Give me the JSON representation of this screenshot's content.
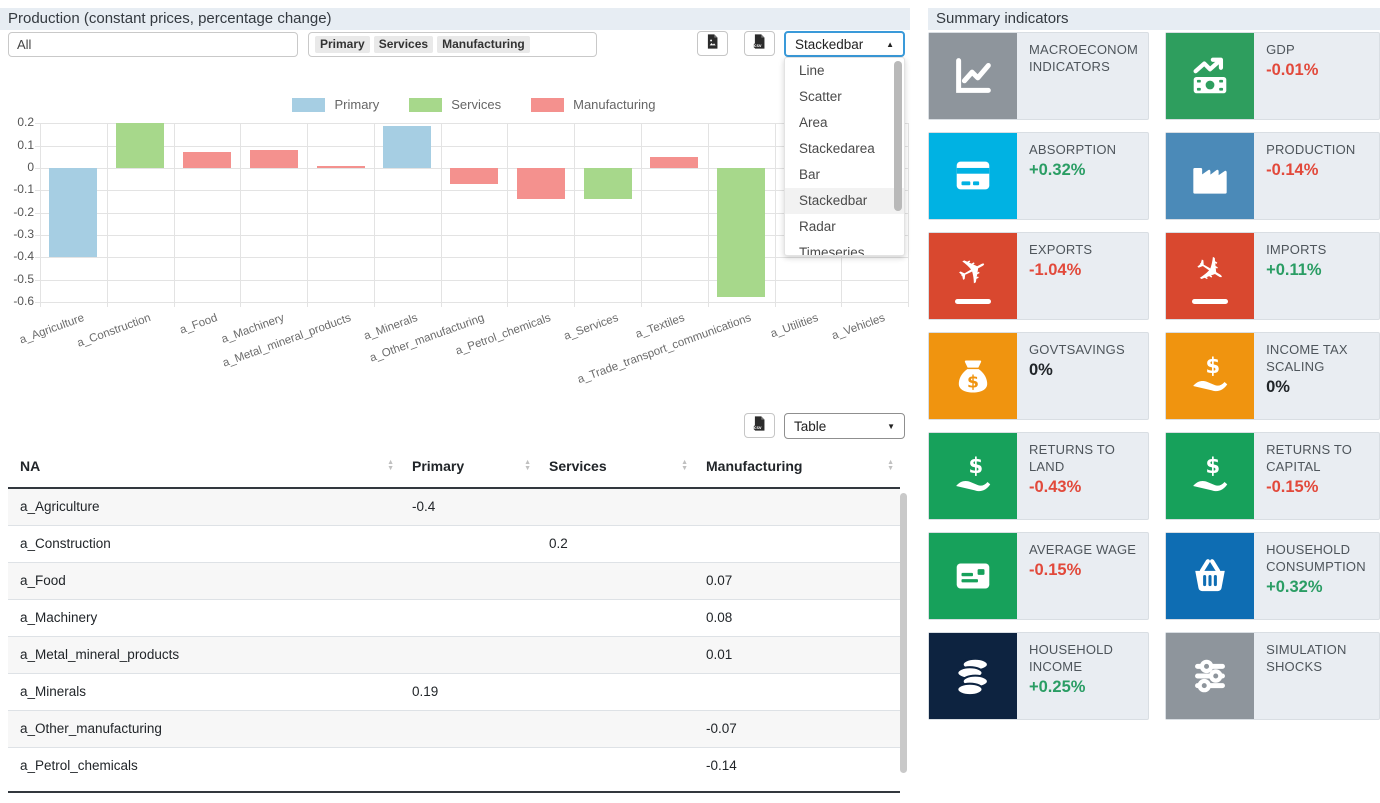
{
  "left_panel": {
    "title": "Production (constant prices, percentage change)",
    "sector_filter": {
      "value": "All"
    },
    "series_filter": {
      "tags": [
        "Primary",
        "Services",
        "Manufacturing"
      ]
    },
    "toolbar": {
      "export_image_icon": "file-image",
      "export_csv_icon": "file-csv",
      "chart_type": {
        "value": "Stackedbar",
        "open": true,
        "highlighted": "Stackedbar",
        "options": [
          "Line",
          "Scatter",
          "Area",
          "Stackedarea",
          "Bar",
          "Stackedbar",
          "Radar",
          "Timeseries"
        ]
      }
    },
    "table_toolbar": {
      "export_csv_icon": "file-csv",
      "view_select": {
        "value": "Table"
      }
    }
  },
  "chart_data": {
    "type": "bar",
    "title": "Production (constant prices, percentage change)",
    "categories": [
      "a_Agriculture",
      "a_Construction",
      "a_Food",
      "a_Machinery",
      "a_Metal_mineral_products",
      "a_Minerals",
      "a_Other_manufacturing",
      "a_Petrol_chemicals",
      "a_Services",
      "a_Textiles",
      "a_Trade_transport_communications",
      "a_Utilities",
      "a_Vehicles"
    ],
    "series": [
      {
        "name": "Primary",
        "color": "#a6cee3",
        "values": [
          -0.4,
          null,
          null,
          null,
          null,
          0.19,
          null,
          null,
          null,
          null,
          null,
          null,
          null
        ]
      },
      {
        "name": "Services",
        "color": "#a7d88b",
        "values": [
          null,
          0.2,
          null,
          null,
          null,
          null,
          null,
          null,
          -0.14,
          null,
          -0.58,
          null,
          null
        ]
      },
      {
        "name": "Manufacturing",
        "color": "#f4918e",
        "values": [
          null,
          null,
          0.07,
          0.08,
          0.01,
          null,
          -0.07,
          -0.14,
          null,
          0.05,
          null,
          null,
          null
        ]
      }
    ],
    "ylim": [
      -0.6,
      0.2
    ],
    "yticks": [
      0.2,
      0.1,
      0,
      -0.1,
      -0.2,
      -0.3,
      -0.4,
      -0.5,
      -0.6
    ],
    "grid": true,
    "legend_position": "top"
  },
  "table": {
    "columns": [
      "NA",
      "Primary",
      "Services",
      "Manufacturing"
    ],
    "rows": [
      [
        "a_Agriculture",
        "-0.4",
        "",
        ""
      ],
      [
        "a_Construction",
        "",
        "0.2",
        ""
      ],
      [
        "a_Food",
        "",
        "",
        "0.07"
      ],
      [
        "a_Machinery",
        "",
        "",
        "0.08"
      ],
      [
        "a_Metal_mineral_products",
        "",
        "",
        "0.01"
      ],
      [
        "a_Minerals",
        "0.19",
        "",
        ""
      ],
      [
        "a_Other_manufacturing",
        "",
        "",
        "-0.07"
      ],
      [
        "a_Petrol_chemicals",
        "",
        "",
        "-0.14"
      ]
    ]
  },
  "summary": {
    "title": "Summary indicators",
    "value_colors": {
      "negative": "#e2493b",
      "positive": "#2a9d64",
      "zero": "#212529"
    },
    "tiles": [
      {
        "label": "MACROECONOM INDICATORS",
        "value": "",
        "icon": "line-chart",
        "color": "#8e959c",
        "value_state": ""
      },
      {
        "label": "GDP",
        "value": "-0.01%",
        "icon": "money-growth",
        "color": "#2e9e5e",
        "value_state": "negative"
      },
      {
        "label": "ABSORPTION",
        "value": "+0.32%",
        "icon": "credit-card",
        "color": "#00b2e3",
        "value_state": "positive"
      },
      {
        "label": "PRODUCTION",
        "value": "-0.14%",
        "icon": "factory",
        "color": "#4b8ab8",
        "value_state": "negative"
      },
      {
        "label": "EXPORTS",
        "value": "-1.04%",
        "icon": "plane-departure",
        "color": "#d9482f",
        "value_state": "negative"
      },
      {
        "label": "IMPORTS",
        "value": "+0.11%",
        "icon": "plane-arrival",
        "color": "#d9482f",
        "value_state": "positive"
      },
      {
        "label": "GOVTSAVINGS",
        "value": "0%",
        "icon": "money-bag",
        "color": "#f0940f",
        "value_state": "zero"
      },
      {
        "label": "INCOME TAX SCALING",
        "value": "0%",
        "icon": "hand-dollar",
        "color": "#f0940f",
        "value_state": "zero"
      },
      {
        "label": "RETURNS TO LAND",
        "value": "-0.43%",
        "icon": "hand-dollar",
        "color": "#17a15b",
        "value_state": "negative"
      },
      {
        "label": "RETURNS TO CAPITAL",
        "value": "-0.15%",
        "icon": "hand-dollar",
        "color": "#17a15b",
        "value_state": "negative"
      },
      {
        "label": "AVERAGE WAGE",
        "value": "-0.15%",
        "icon": "id-card",
        "color": "#17a15b",
        "value_state": "negative"
      },
      {
        "label": "HOUSEHOLD CONSUMPTION",
        "value": "+0.32%",
        "icon": "basket",
        "color": "#0e6db3",
        "value_state": "positive"
      },
      {
        "label": "HOUSEHOLD INCOME",
        "value": "+0.25%",
        "icon": "coins",
        "color": "#0d2340",
        "value_state": "positive"
      },
      {
        "label": "SIMULATION SHOCKS",
        "value": "",
        "icon": "sliders",
        "color": "#8e959c",
        "value_state": ""
      }
    ]
  }
}
